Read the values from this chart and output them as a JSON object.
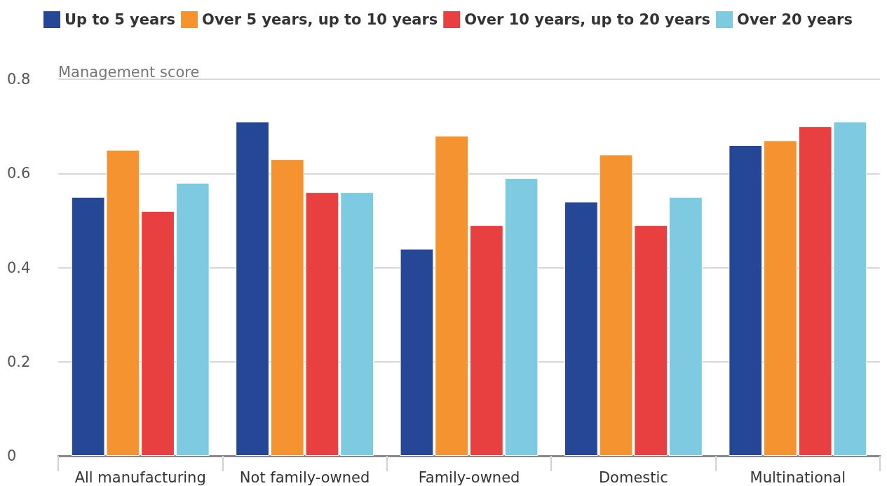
{
  "chart_data": {
    "type": "bar",
    "ylabel": "Management score",
    "categories": [
      "All manufacturing",
      "Not family-owned",
      "Family-owned",
      "Domestic",
      "Multinational"
    ],
    "series": [
      {
        "name": "Up to 5 years",
        "color": "#264796",
        "values": [
          0.55,
          0.71,
          0.44,
          0.54,
          0.66
        ]
      },
      {
        "name": "Over 5 years, up to 10 years",
        "color": "#f59331",
        "values": [
          0.65,
          0.63,
          0.68,
          0.64,
          0.67
        ]
      },
      {
        "name": "Over 10 years, up to 20 years",
        "color": "#e84040",
        "values": [
          0.52,
          0.56,
          0.49,
          0.49,
          0.7
        ]
      },
      {
        "name": "Over 20 years",
        "color": "#7ecae1",
        "values": [
          0.58,
          0.56,
          0.59,
          0.55,
          0.71
        ]
      }
    ],
    "ylim": [
      0,
      0.8
    ],
    "yticks": [
      0,
      0.2,
      0.4,
      0.6,
      0.8
    ],
    "grid": "y",
    "legend": "top left"
  }
}
